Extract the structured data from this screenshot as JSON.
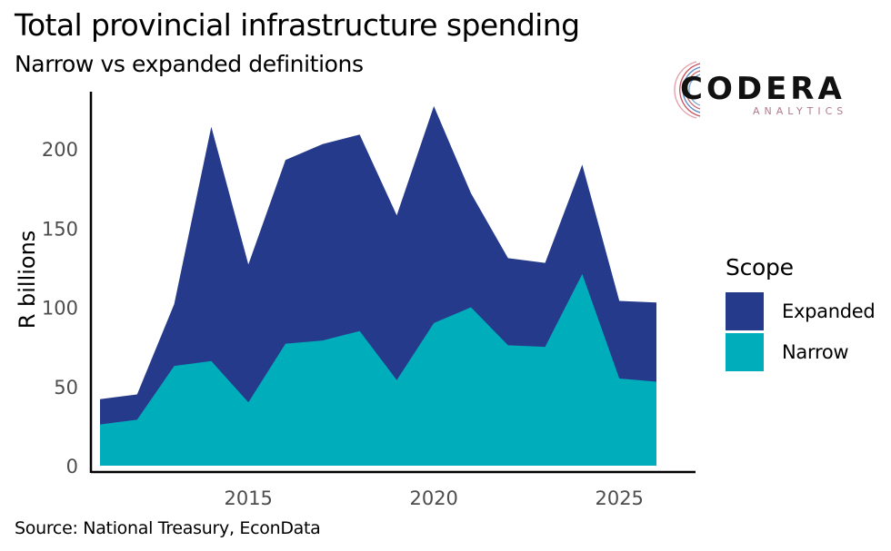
{
  "title": "Total provincial infrastructure spending",
  "subtitle": "Narrow vs expanded definitions",
  "caption": "Source: National Treasury, EconData",
  "logo": {
    "name": "CODERA",
    "tagline": "ANALYTICS"
  },
  "colors": {
    "Expanded": "#253a8b",
    "Narrow": "#00adbb"
  },
  "chart_data": {
    "type": "area",
    "title": "Total provincial infrastructure spending",
    "subtitle": "Narrow vs expanded definitions",
    "xlabel": "",
    "ylabel": "R billions",
    "x": [
      2011,
      2012,
      2013,
      2014,
      2015,
      2016,
      2017,
      2018,
      2019,
      2020,
      2021,
      2022,
      2023,
      2024,
      2025,
      2026
    ],
    "series": [
      {
        "name": "Expanded",
        "values": [
          42,
          45,
          102,
          214,
          127,
          193,
          203,
          209,
          158,
          227,
          172,
          131,
          128,
          190,
          104,
          103
        ]
      },
      {
        "name": "Narrow",
        "values": [
          26,
          29,
          63,
          66,
          40,
          77,
          79,
          85,
          54,
          90,
          100,
          76,
          75,
          121,
          55,
          53
        ]
      }
    ],
    "stacking": "overlapping",
    "xlim": [
      2010.8,
      2027.1
    ],
    "ylim": [
      0,
      230
    ],
    "xticks": [
      2015,
      2020,
      2025
    ],
    "yticks": [
      0,
      50,
      100,
      150,
      200
    ],
    "grid": false,
    "legend": {
      "title": "Scope",
      "position": "right",
      "entries": [
        "Expanded",
        "Narrow"
      ]
    }
  }
}
